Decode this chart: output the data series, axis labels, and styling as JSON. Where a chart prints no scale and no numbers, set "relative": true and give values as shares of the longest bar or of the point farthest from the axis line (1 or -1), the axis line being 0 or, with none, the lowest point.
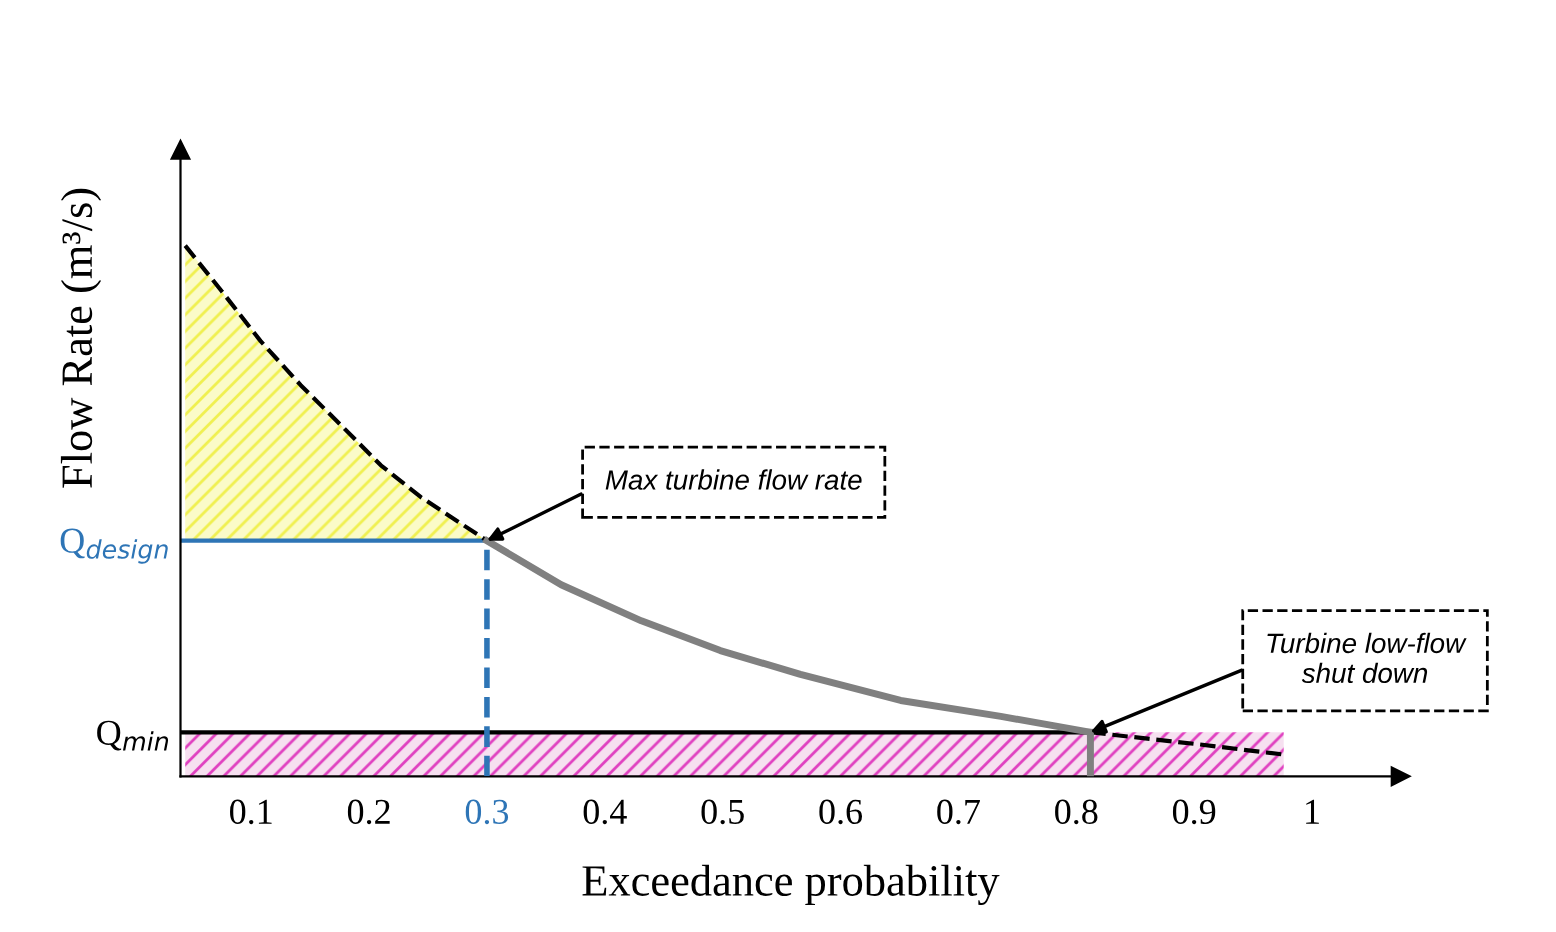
{
  "chart_data": {
    "type": "line",
    "relative": true,
    "xlabel": "Exceedance probability",
    "ylabel": "Flow Rate (m³/s)",
    "xlim": [
      0.04,
      1.075
    ],
    "xticks": [
      0.1,
      0.2,
      0.3,
      0.4,
      0.5,
      0.6,
      0.7,
      0.8,
      0.9,
      1
    ],
    "series": [
      {
        "x": [
          0.044,
          0.075,
          0.108,
          0.142,
          0.176,
          0.21,
          0.244,
          0.3
        ],
        "values": [
          1.0,
          0.914,
          0.82,
          0.737,
          0.662,
          0.586,
          0.526,
          0.444
        ],
        "type": "area",
        "color": "#000000",
        "line_style": "dashed"
      },
      {
        "x": [
          0.3,
          0.363,
          0.431,
          0.498,
          0.566,
          0.651,
          0.736,
          0.812
        ],
        "values": [
          0.444,
          0.361,
          0.293,
          0.237,
          0.192,
          0.143,
          0.113,
          0.083
        ],
        "color": "#808080",
        "line_style": "solid"
      },
      {
        "x": [
          0.812,
          0.905,
          0.976
        ],
        "values": [
          0.083,
          0.06,
          0.041
        ],
        "color": "#000000",
        "line_style": "dashed"
      },
      {
        "x": [
          0.812,
          0.812
        ],
        "values": [
          0,
          0.083
        ],
        "color": "#808080",
        "line_style": "solid"
      }
    ],
    "bands": [
      {
        "axis": "y",
        "from": 0,
        "to": 0.083,
        "color": "#e040c0"
      }
    ],
    "ref_lines": [
      {
        "axis": "y",
        "value": 0.444,
        "label": "Q$_{design}$",
        "color": "#2e75b6",
        "line_style": "solid"
      },
      {
        "axis": "x",
        "value": 0.3,
        "color": "#2e75b6",
        "line_style": "dashed"
      },
      {
        "axis": "y",
        "value": 0.083,
        "label": "Q$_{min}$",
        "color": "#000000",
        "line_style": "solid"
      }
    ],
    "annotations": [
      {
        "text": "Max turbine flow rate",
        "x": 0.3,
        "y": 0.444
      },
      {
        "text": "Turbine low-flow\nshut down",
        "x": 0.812,
        "y": 0.083
      }
    ],
    "grid": false,
    "legend": false,
    "marker": "none"
  }
}
